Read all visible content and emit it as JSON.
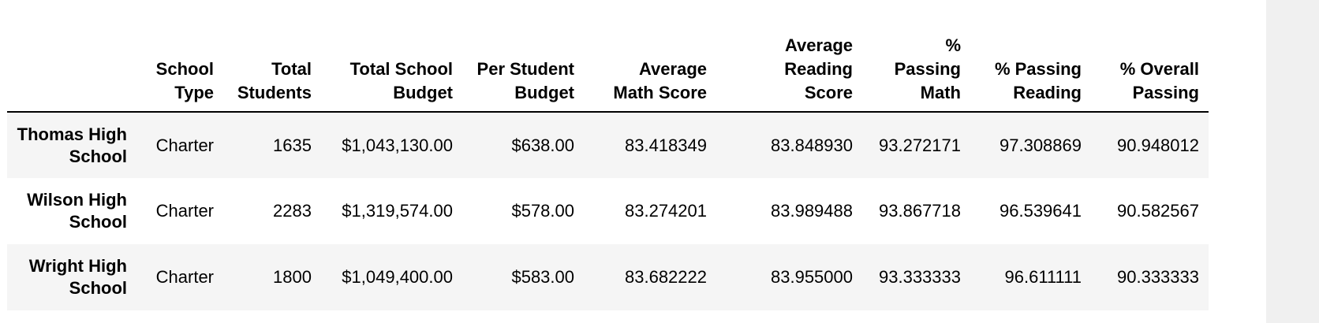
{
  "table": {
    "columns": [
      "",
      "School Type",
      "Total Students",
      "Total School Budget",
      "Per Student Budget",
      "Average Math Score",
      "Average Reading Score",
      "% Passing Math",
      "% Passing Reading",
      "% Overall Passing"
    ],
    "rows": [
      {
        "index": "Thomas High School",
        "cells": [
          "Charter",
          "1635",
          "$1,043,130.00",
          "$638.00",
          "83.418349",
          "83.848930",
          "93.272171",
          "97.308869",
          "90.948012"
        ]
      },
      {
        "index": "Wilson High School",
        "cells": [
          "Charter",
          "2283",
          "$1,319,574.00",
          "$578.00",
          "83.274201",
          "83.989488",
          "93.867718",
          "96.539641",
          "90.582567"
        ]
      },
      {
        "index": "Wright High School",
        "cells": [
          "Charter",
          "1800",
          "$1,049,400.00",
          "$583.00",
          "83.682222",
          "83.955000",
          "93.333333",
          "96.611111",
          "90.333333"
        ]
      }
    ]
  }
}
